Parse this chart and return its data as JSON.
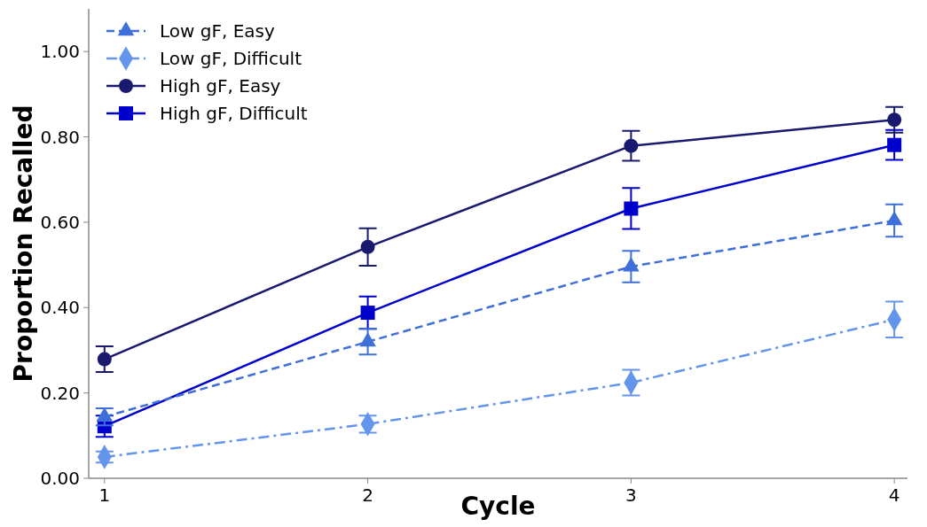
{
  "chart_data": {
    "type": "line",
    "xlabel": "Cycle",
    "ylabel": "Proportion Recalled",
    "x": [
      1,
      2,
      3,
      4
    ],
    "xlim": [
      0.94,
      4.05
    ],
    "xticks": [
      1,
      2,
      3,
      4
    ],
    "ylim": [
      0,
      1.1
    ],
    "yticks": [
      {
        "value": 0,
        "label": "0.00"
      },
      {
        "value": 0.2,
        "label": "0.20"
      },
      {
        "value": 0.4,
        "label": "0.40"
      },
      {
        "value": 0.6,
        "label": "0.60"
      },
      {
        "value": 0.8,
        "label": "0.80"
      },
      {
        "value": 1,
        "label": "1.00"
      }
    ],
    "grid": false,
    "legend": "top left",
    "series": [
      {
        "name": "Low gF, Easy",
        "color": "#3f6fd8",
        "marker": "triangle",
        "line_style": "dashed",
        "values": [
          0.144,
          0.32,
          0.496,
          0.604
        ],
        "errors": [
          0.02,
          0.03,
          0.037,
          0.038
        ]
      },
      {
        "name": "Low gF, Difficult",
        "color": "#6495ed",
        "marker": "diamond",
        "line_style": "dashdot",
        "values": [
          0.05,
          0.127,
          0.224,
          0.372
        ],
        "errors": [
          0.013,
          0.02,
          0.03,
          0.042
        ]
      },
      {
        "name": "High gF, Easy",
        "color": "#191970",
        "marker": "circle",
        "line_style": "solid",
        "values": [
          0.279,
          0.542,
          0.779,
          0.84
        ],
        "errors": [
          0.03,
          0.044,
          0.035,
          0.03
        ]
      },
      {
        "name": "High gF, Difficult",
        "color": "#0000cd",
        "marker": "square",
        "line_style": "solid",
        "values": [
          0.122,
          0.388,
          0.632,
          0.781
        ],
        "errors": [
          0.025,
          0.038,
          0.048,
          0.035
        ]
      }
    ]
  }
}
